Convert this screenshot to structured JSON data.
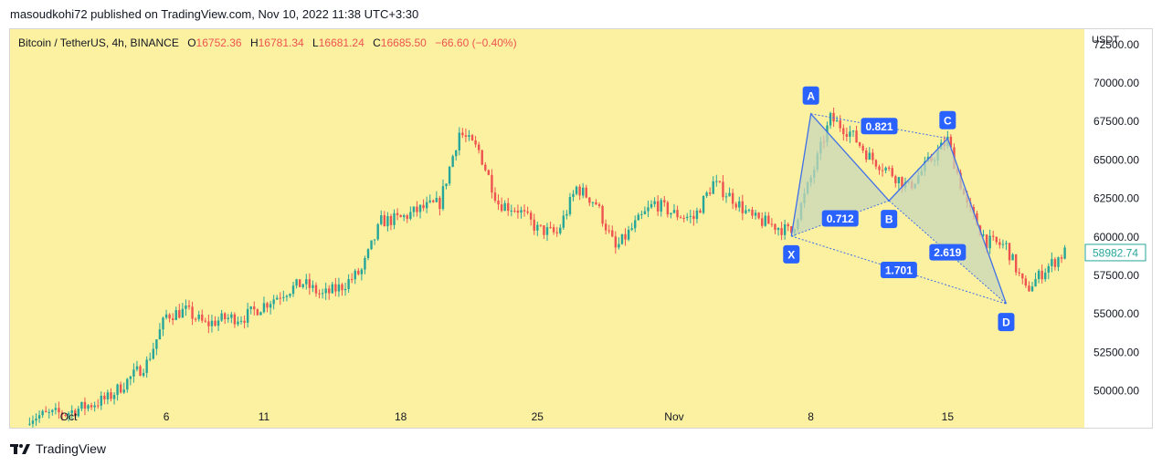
{
  "header": {
    "publisher_line": "masoudkohi72 published on TradingView.com, Nov 10, 2022 11:38 UTC+3:30"
  },
  "legend": {
    "symbol": "Bitcoin / TetherUS, 4h, BINANCE",
    "open_label": "O",
    "open": "16752.36",
    "high_label": "H",
    "high": "16781.34",
    "low_label": "L",
    "low": "16681.24",
    "close_label": "C",
    "close": "16685.50",
    "change": "−66.60 (−0.40%)"
  },
  "footer": {
    "brand": "TradingView"
  },
  "colors": {
    "background": "#fbf1a0",
    "up": "#26a69a",
    "down": "#ef5350",
    "pattern_fill": "#c8d6b9",
    "pattern_line": "#3f6fe8",
    "label_bg": "#2962ff",
    "price_tag": "#26a69a"
  },
  "chart_data": {
    "type": "candlestick",
    "currency_label": "USDT",
    "y_ticks": [
      "72500.00",
      "70000.00",
      "67500.00",
      "65000.00",
      "62500.00",
      "60000.00",
      "57500.00",
      "55000.00",
      "52500.00",
      "50000.00"
    ],
    "y_tick_values": [
      72500,
      70000,
      67500,
      65000,
      62500,
      60000,
      57500,
      55000,
      52500,
      50000
    ],
    "ylim": [
      47600,
      73500
    ],
    "x_ticks": [
      "Oct",
      "6",
      "11",
      "18",
      "25",
      "Nov",
      "8",
      "15"
    ],
    "x_tick_values": [
      "2022-10-01",
      "2022-10-06",
      "2022-10-11",
      "2022-10-18",
      "2022-10-25",
      "2022-11-01",
      "2022-11-08",
      "2022-11-15"
    ],
    "xlim": [
      "2022-09-28",
      "2022-11-22"
    ],
    "last_price": "58982.74",
    "last_price_value": 58982.74,
    "waypoints": [
      [
        "2022-09-29",
        48300
      ],
      [
        "2022-10-01",
        48600
      ],
      [
        "2022-10-03",
        49500
      ],
      [
        "2022-10-05",
        51800
      ],
      [
        "2022-10-06",
        54900
      ],
      [
        "2022-10-07",
        55200
      ],
      [
        "2022-10-08",
        54300
      ],
      [
        "2022-10-09",
        54700
      ],
      [
        "2022-10-10",
        54800
      ],
      [
        "2022-10-11",
        55600
      ],
      [
        "2022-10-12",
        56400
      ],
      [
        "2022-10-13",
        57000
      ],
      [
        "2022-10-14",
        56200
      ],
      [
        "2022-10-15",
        56800
      ],
      [
        "2022-10-16",
        57800
      ],
      [
        "2022-10-17",
        61000
      ],
      [
        "2022-10-18",
        61200
      ],
      [
        "2022-10-19",
        61800
      ],
      [
        "2022-10-20",
        62200
      ],
      [
        "2022-10-21",
        66800
      ],
      [
        "2022-10-22",
        65600
      ],
      [
        "2022-10-23",
        62200
      ],
      [
        "2022-10-24",
        61800
      ],
      [
        "2022-10-25",
        60500
      ],
      [
        "2022-10-26",
        60200
      ],
      [
        "2022-10-27",
        63200
      ],
      [
        "2022-10-28",
        62200
      ],
      [
        "2022-10-29",
        59200
      ],
      [
        "2022-10-30",
        60800
      ],
      [
        "2022-10-31",
        62200
      ],
      [
        "2022-11-01",
        61500
      ],
      [
        "2022-11-02",
        61200
      ],
      [
        "2022-11-03",
        63500
      ],
      [
        "2022-11-04",
        62500
      ],
      [
        "2022-11-05",
        61200
      ],
      [
        "2022-11-06",
        60800
      ],
      [
        "2022-11-07",
        60300
      ],
      [
        "2022-11-08",
        63800
      ],
      [
        "2022-11-09",
        67700
      ],
      [
        "2022-11-10",
        66800
      ],
      [
        "2022-11-11",
        65200
      ],
      [
        "2022-11-12",
        64300
      ],
      [
        "2022-11-13",
        63200
      ],
      [
        "2022-11-14",
        64800
      ],
      [
        "2022-11-15",
        66300
      ],
      [
        "2022-11-16",
        62000
      ],
      [
        "2022-11-17",
        59700
      ],
      [
        "2022-11-18",
        59400
      ],
      [
        "2022-11-19",
        56500
      ],
      [
        "2022-11-20",
        57900
      ],
      [
        "2022-11-21",
        59000
      ]
    ],
    "harmonic_pattern": {
      "points": [
        {
          "label": "X",
          "date": "2022-11-07",
          "price": 60050
        },
        {
          "label": "A",
          "date": "2022-11-08",
          "price": 68000
        },
        {
          "label": "B",
          "date": "2022-11-12",
          "price": 62350
        },
        {
          "label": "C",
          "date": "2022-11-15",
          "price": 66400
        },
        {
          "label": "D",
          "date": "2022-11-18",
          "price": 55650
        }
      ],
      "ratios": [
        {
          "label": "0.821",
          "from": "A",
          "to": "C"
        },
        {
          "label": "0.712",
          "from": "X",
          "to": "B"
        },
        {
          "label": "2.619",
          "from": "B",
          "to": "D"
        },
        {
          "label": "1.701",
          "from": "X",
          "to": "D"
        }
      ]
    }
  }
}
